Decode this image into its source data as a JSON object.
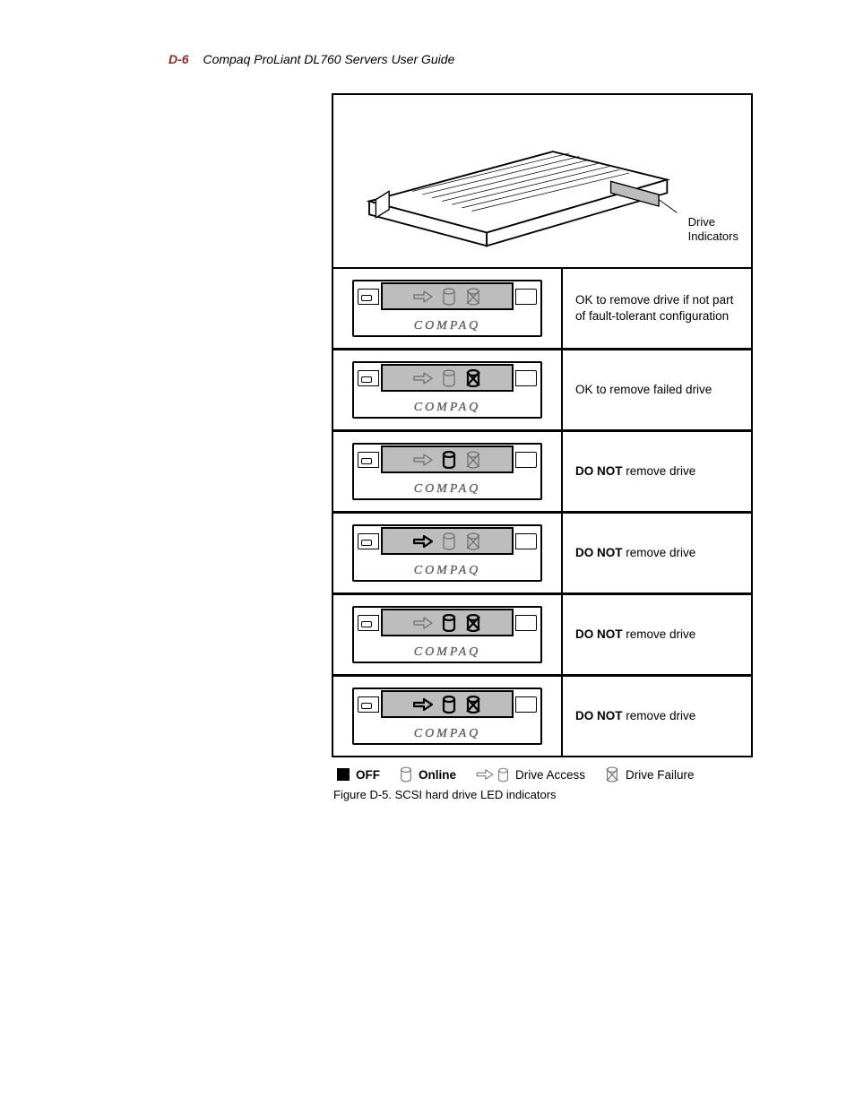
{
  "header": {
    "page_num": "D-6",
    "title": "Compaq ProLiant DL760 Servers User Guide"
  },
  "figure": {
    "drive_label_line1": "Drive",
    "drive_label_line2": "Indicators",
    "brand_text": "COMPAQ",
    "rows": [
      {
        "leds": {
          "access": "off",
          "online": "off",
          "failure": "off"
        },
        "desc_bold": "",
        "desc_rest": "OK to remove drive if not part of fault-tolerant configuration"
      },
      {
        "leds": {
          "access": "off",
          "online": "off",
          "failure": "on"
        },
        "desc_bold": "",
        "desc_rest": "OK to remove failed drive"
      },
      {
        "leds": {
          "access": "off",
          "online": "on",
          "failure": "off"
        },
        "desc_bold": "DO NOT",
        "desc_rest": " remove drive"
      },
      {
        "leds": {
          "access": "on",
          "online": "off",
          "failure": "off"
        },
        "desc_bold": "DO NOT",
        "desc_rest": " remove drive"
      },
      {
        "leds": {
          "access": "off",
          "online": "on",
          "failure": "on"
        },
        "desc_bold": "DO NOT",
        "desc_rest": " remove drive"
      },
      {
        "leds": {
          "access": "on",
          "online": "on",
          "failure": "on"
        },
        "desc_bold": "DO NOT",
        "desc_rest": " remove drive"
      }
    ],
    "legend": {
      "off": "OFF",
      "online": "Online",
      "access": "Drive Access",
      "failure": "Drive Failure"
    },
    "caption": "Figure D-5.  SCSI hard drive LED indicators"
  },
  "style": {
    "gray_panel": "#bdbdbd",
    "led_on_stroke": "#000000",
    "led_on_width": 2.2,
    "led_off_stroke": "#6b6b6b",
    "led_off_width": 1.2,
    "brand_color": "#666666",
    "header_pagenum_color": "#8a2a2a"
  }
}
